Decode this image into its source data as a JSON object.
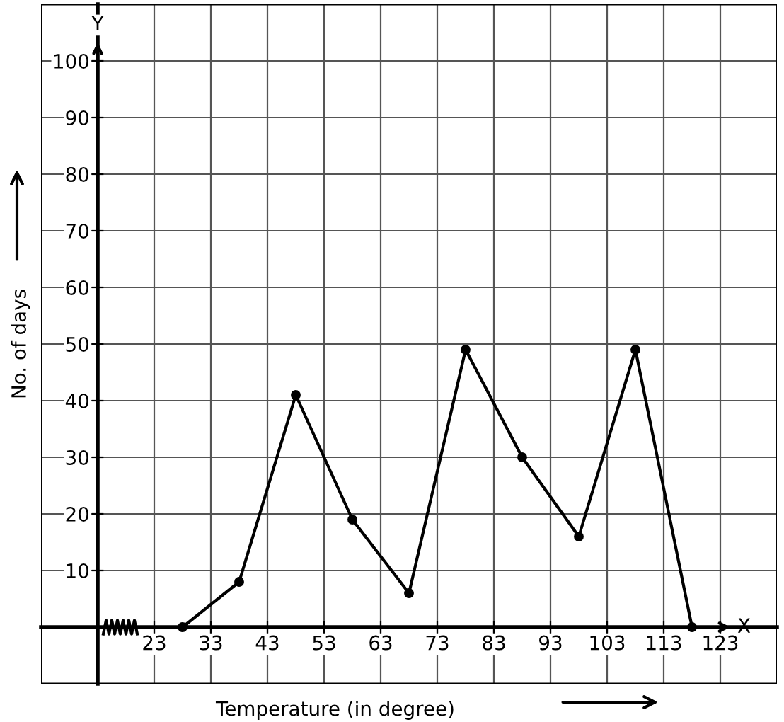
{
  "chart_data": {
    "type": "line",
    "xlabel": "Temperature (in degree)",
    "ylabel": "No. of days",
    "x": [
      28,
      38,
      48,
      58,
      68,
      78,
      88,
      98,
      108,
      118
    ],
    "series": [
      {
        "color": "#000000",
        "values": [
          0,
          8,
          41,
          19,
          6,
          49,
          30,
          16,
          49,
          0
        ]
      }
    ],
    "marker": "circle",
    "line_style": "solid",
    "grid": true,
    "legend": false,
    "xlim": [
      3,
      133
    ],
    "ylim": [
      -10,
      110
    ],
    "xticks": [
      23,
      33,
      43,
      53,
      63,
      73,
      83,
      93,
      103,
      113,
      123
    ],
    "yticks": [
      10,
      20,
      30,
      40,
      50,
      60,
      70,
      80,
      90,
      100
    ],
    "annotations": [
      "X",
      "Y"
    ]
  }
}
